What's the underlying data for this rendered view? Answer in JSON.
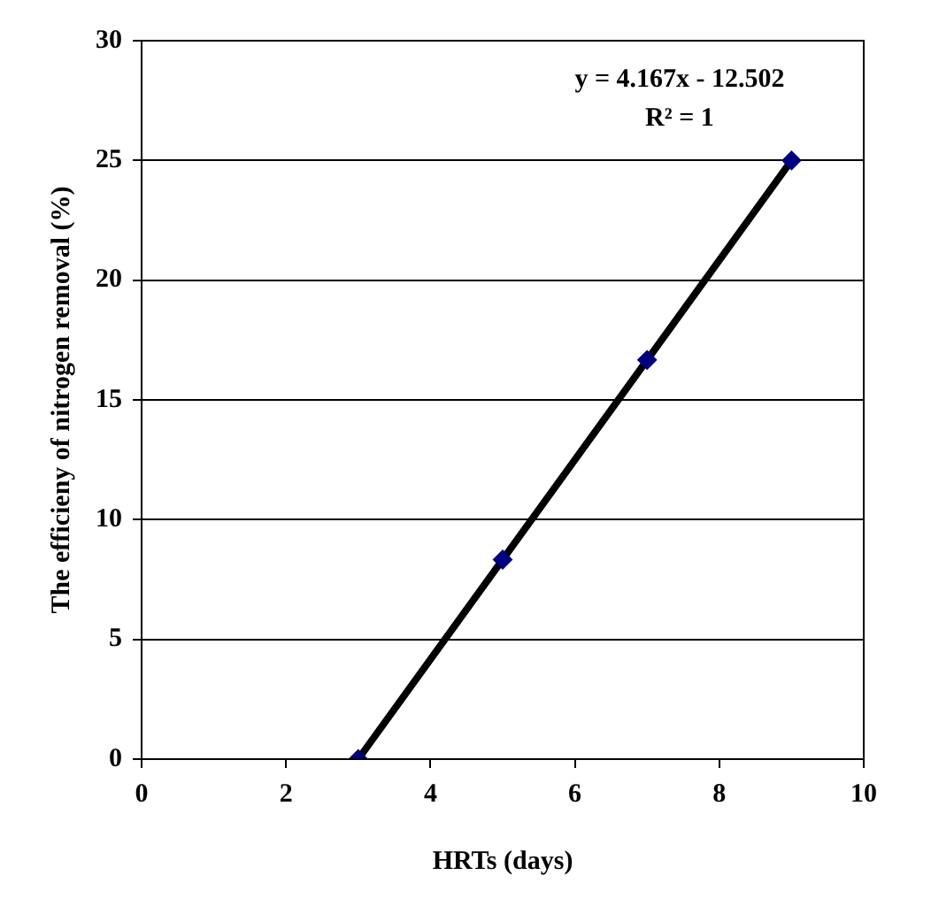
{
  "chart_data": {
    "type": "scatter",
    "xlabel": "HRTs (days)",
    "ylabel": "The efficieny of nitrogen removal (%)",
    "xlim": [
      0,
      10
    ],
    "xticks": [
      0,
      2,
      4,
      6,
      8,
      10
    ],
    "ylim": [
      0,
      30
    ],
    "yticks": [
      0,
      5,
      10,
      15,
      20,
      25,
      30
    ],
    "grid": "y",
    "legend": false,
    "series": [
      {
        "color": "#000080",
        "x": [
          3,
          5,
          7,
          9
        ],
        "values": [
          0,
          8.33,
          16.67,
          25
        ],
        "marker": "diamond"
      },
      {
        "type": "line",
        "color": "#000000",
        "x": [
          3,
          9
        ],
        "values": [
          0,
          25
        ],
        "marker": "none",
        "line_style": "solid"
      }
    ],
    "annotations": [
      "y = 4.167x - 12.502",
      "R² = 1"
    ]
  }
}
